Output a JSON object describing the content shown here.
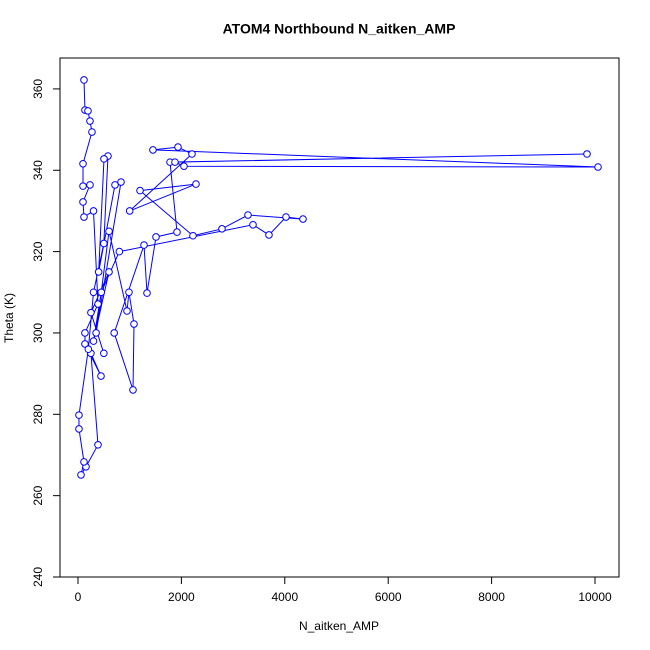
{
  "chart_data": {
    "type": "line",
    "markers": true,
    "title": "ATOM4 Northbound N_aitken_AMP",
    "x_label": "N_aitken_AMP",
    "y_label": "Theta (K)",
    "color": "#0000ff",
    "x": [
      116,
      135,
      193,
      232,
      270,
      97,
      97,
      232,
      97,
      116,
      300,
      387,
      135,
      135,
      445,
      250,
      387,
      155,
      58,
      116,
      19,
      19,
      200,
      300,
      500,
      580,
      503,
      400,
      716,
      832,
      350,
      600,
      948,
      986,
      1083,
      1064,
      700,
      1277,
      1335,
      1509,
      1915,
      1780,
      9845,
      1876,
      2050,
      10058,
      1450,
      1934,
      2205,
      1000,
      2282,
      1200,
      2224,
      2785,
      3288,
      4352,
      4023,
      3694,
      3385,
      800,
      450,
      300,
      600,
      250,
      500
    ],
    "values": [
      362.2,
      354.8,
      354.6,
      352.1,
      349.4,
      341.6,
      336.1,
      336.4,
      332.2,
      328.5,
      330,
      307.1,
      300,
      297.3,
      289.4,
      295,
      272.5,
      267.1,
      265.1,
      268.3,
      276.4,
      279.8,
      296,
      310,
      322,
      343.5,
      342.8,
      315,
      336.4,
      337.1,
      300,
      325,
      305.4,
      310,
      302.2,
      286,
      300,
      321.6,
      309.8,
      323.6,
      324.8,
      342,
      344,
      342,
      341,
      340.8,
      345,
      345.7,
      344,
      330,
      336.6,
      335,
      323.9,
      325.6,
      329,
      328,
      328.5,
      324.1,
      326.6,
      320,
      310,
      298,
      315,
      305,
      295
    ],
    "xlim": [
      -348,
      10464
    ],
    "ylim": [
      240,
      367.6
    ],
    "xticks": [
      0,
      2000,
      4000,
      6000,
      8000,
      10000
    ],
    "yticks": [
      240,
      260,
      280,
      300,
      320,
      340,
      360
    ]
  }
}
